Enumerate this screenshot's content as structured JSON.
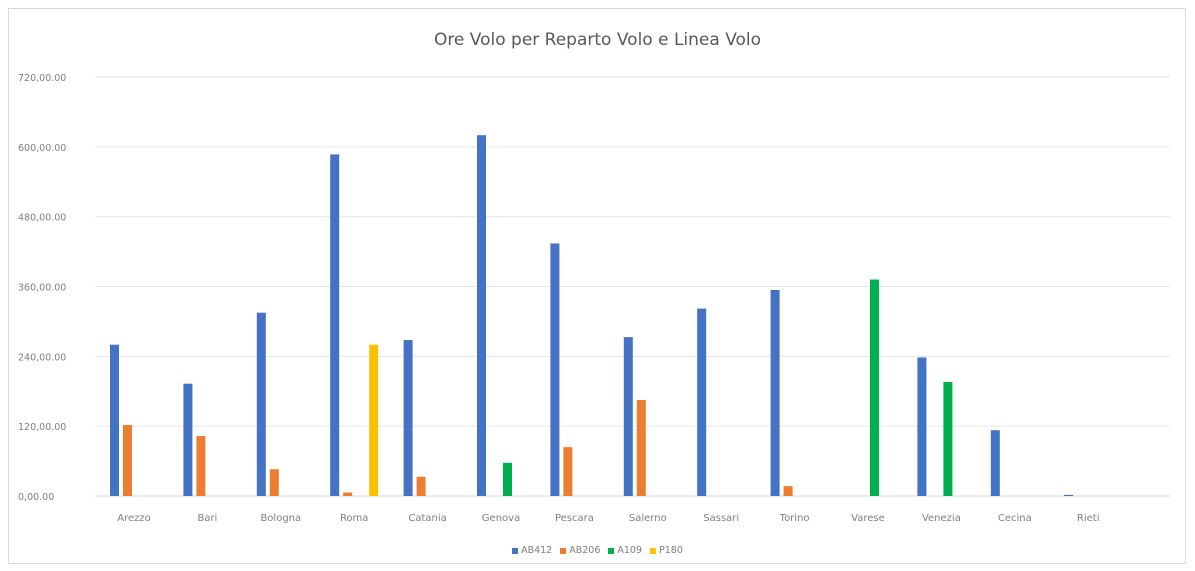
{
  "chart_data": {
    "type": "bar",
    "title": "Ore Volo per Reparto Volo e Linea Volo",
    "xlabel": "",
    "ylabel": "",
    "ylim": [
      0,
      720
    ],
    "yticks": [
      0,
      120,
      240,
      360,
      480,
      600,
      720
    ],
    "ytick_labels": [
      "0,00.00",
      "120,00.00",
      "240,00.00",
      "360,00.00",
      "480,00.00",
      "600,00.00",
      "720,00.00"
    ],
    "categories": [
      "Arezzo",
      "Bari",
      "Bologna",
      "Roma",
      "Catania",
      "Genova",
      "Pescara",
      "Salerno",
      "Sassari",
      "Torino",
      "Varese",
      "Venezia",
      "Cecina",
      "Rieti"
    ],
    "series": [
      {
        "name": "AB412",
        "color": "#4472c4",
        "values": [
          260,
          193,
          315,
          587,
          268,
          620,
          434,
          273,
          322,
          354,
          0,
          238,
          113,
          2
        ]
      },
      {
        "name": "AB206",
        "color": "#ed7d31",
        "values": [
          122,
          103,
          46,
          6,
          33,
          0,
          84,
          165,
          0,
          17,
          0,
          0,
          0,
          0
        ]
      },
      {
        "name": "A109",
        "color": "#00b050",
        "values": [
          0,
          0,
          0,
          0,
          0,
          57,
          0,
          0,
          0,
          0,
          372,
          196,
          0,
          0
        ]
      },
      {
        "name": "P180",
        "color": "#ffc000",
        "values": [
          0,
          0,
          0,
          260,
          0,
          0,
          0,
          0,
          0,
          0,
          0,
          0,
          0,
          0
        ]
      }
    ],
    "grid": true,
    "legend_position": "bottom"
  }
}
